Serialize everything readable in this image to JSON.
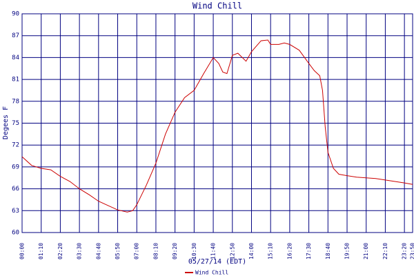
{
  "chart_data": {
    "type": "line",
    "title": "Wind Chill",
    "ylabel": "Degees F",
    "xlabel": "05/27/14 (EDT)",
    "x": [
      "00:00",
      "00:35",
      "01:10",
      "01:45",
      "02:20",
      "02:55",
      "03:30",
      "04:05",
      "04:40",
      "05:15",
      "05:50",
      "06:25",
      "06:45",
      "07:00",
      "07:35",
      "08:10",
      "08:45",
      "09:20",
      "09:55",
      "10:30",
      "11:05",
      "11:40",
      "12:00",
      "12:15",
      "12:30",
      "12:50",
      "13:10",
      "13:40",
      "14:00",
      "14:35",
      "15:00",
      "15:10",
      "15:40",
      "16:00",
      "16:20",
      "16:55",
      "17:30",
      "17:50",
      "18:10",
      "18:20",
      "18:30",
      "18:40",
      "19:00",
      "19:20",
      "19:50",
      "20:25",
      "21:00",
      "21:35",
      "22:10",
      "22:45",
      "23:20",
      "23:50"
    ],
    "series": [
      {
        "name": "Wind Chill",
        "color": "#cc0000",
        "values": [
          70.4,
          69.2,
          68.8,
          68.6,
          67.7,
          67.0,
          66.0,
          65.2,
          64.3,
          63.7,
          63.1,
          62.8,
          63.0,
          63.8,
          66.5,
          69.5,
          73.5,
          76.5,
          78.5,
          79.5,
          81.8,
          84.0,
          83.2,
          82.0,
          81.8,
          84.3,
          84.6,
          83.5,
          84.8,
          86.3,
          86.4,
          85.8,
          85.8,
          86.0,
          85.8,
          85.0,
          83.2,
          82.2,
          81.5,
          79.5,
          74.5,
          71.0,
          68.8,
          68.0,
          67.8,
          67.6,
          67.5,
          67.4,
          67.2,
          67.0,
          66.8,
          66.6
        ]
      }
    ],
    "xlim": [
      "00:00",
      "23:50"
    ],
    "xticks": [
      "00:00",
      "01:10",
      "02:20",
      "03:30",
      "04:40",
      "05:50",
      "07:00",
      "08:10",
      "09:20",
      "10:30",
      "11:40",
      "12:50",
      "14:00",
      "15:10",
      "16:20",
      "17:30",
      "18:40",
      "19:50",
      "21:00",
      "22:10",
      "23:20",
      "23:50"
    ],
    "ylim": [
      60,
      90
    ],
    "yticks": [
      60,
      63,
      66,
      69,
      72,
      75,
      78,
      81,
      84,
      87,
      90
    ],
    "grid": true
  }
}
